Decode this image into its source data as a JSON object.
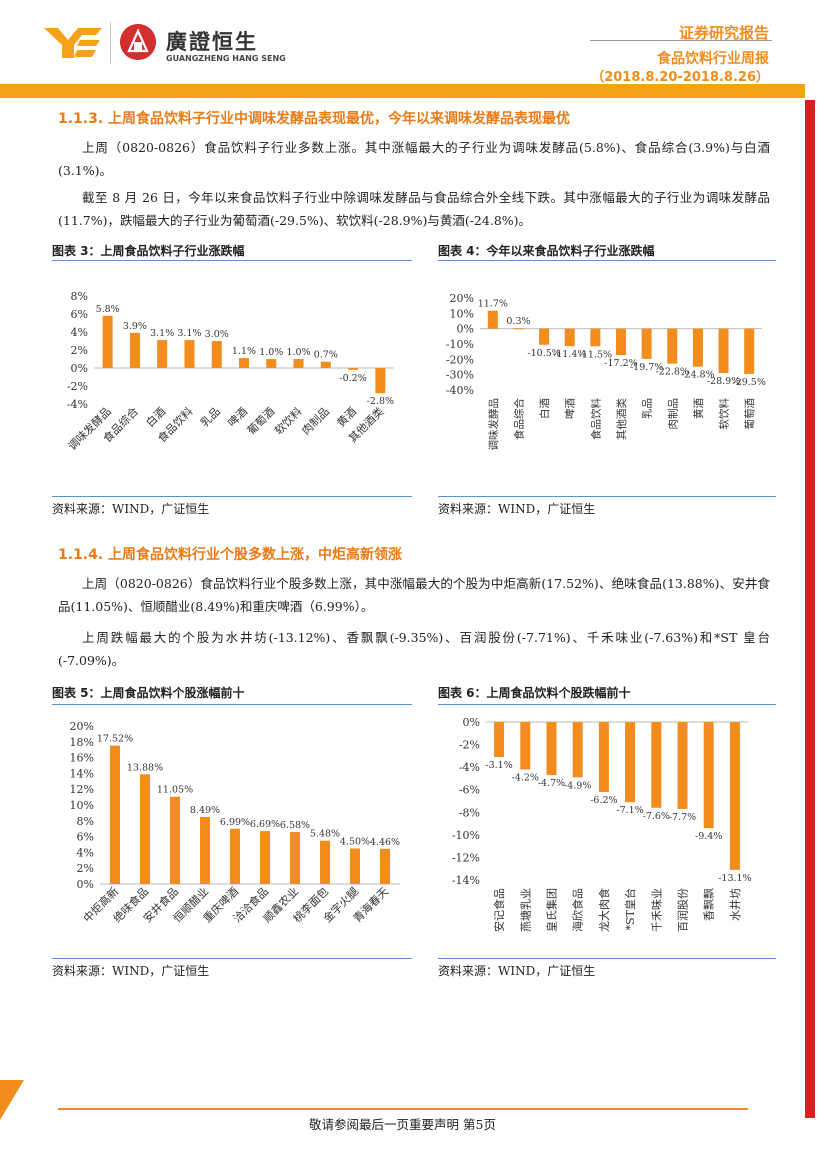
{
  "header": {
    "brand_cn": "廣證恒生",
    "brand_en": "GUANGZHENG HANG SENG",
    "report_type": "证券研究报告",
    "report_title": "食品饮料行业周报",
    "date_range": "（2018.8.20-2018.8.26）"
  },
  "section1": {
    "title": "1.1.3.   上周食品饮料子行业中调味发酵品表现最优，今年以来调味发酵品表现最优",
    "p1": "上周（0820-0826）食品饮料子行业多数上涨。其中涨幅最大的子行业为调味发酵品(5.8%)、食品综合(3.9%)与白酒(3.1%)。",
    "p2": "截至 8 月 26 日，今年以来食品饮料子行业中除调味发酵品与食品综合外全线下跌。其中涨幅最大的子行业为调味发酵品(11.7%)，跌幅最大的子行业为葡萄酒(-29.5%)、软饮料(-28.9%)与黄酒(-24.8%)。"
  },
  "fig3": {
    "title": "图表 3：上周食品饮料子行业涨跌幅",
    "source": "资料来源：WIND，广证恒生"
  },
  "fig4": {
    "title": "图表 4：今年以来食品饮料子行业涨跌幅",
    "source": "资料来源：WIND，广证恒生"
  },
  "section2": {
    "title": "1.1.4.   上周食品饮料行业个股多数上涨，中炬高新领涨",
    "p1": "上周（0820-0826）食品饮料行业个股多数上涨，其中涨幅最大的个股为中炬高新(17.52%)、绝味食品(13.88%)、安井食品(11.05%)、恒顺醋业(8.49%)和重庆啤酒（6.99%）。",
    "p2": "上周跌幅最大的个股为水井坊(-13.12%)、香飘飘(-9.35%)、百润股份(-7.71%)、千禾味业(-7.63%)和*ST 皇台(-7.09%)。"
  },
  "fig5": {
    "title": "图表 5：上周食品饮料个股涨幅前十",
    "source": "资料来源：WIND，广证恒生"
  },
  "fig6": {
    "title": "图表 6：上周食品饮料个股跌幅前十",
    "source": "资料来源：WIND，广证恒生"
  },
  "footer": {
    "text": "敬请参阅最后一页重要声明    第5页"
  },
  "colors": {
    "bar": "#f28c1c",
    "accent": "#ea7a14",
    "rule": "#5b8fd0",
    "side": "#d42020"
  },
  "chart_data": [
    {
      "type": "bar",
      "id": "fig3",
      "categories": [
        "调味发酵品",
        "食品综合",
        "白酒",
        "食品饮料",
        "乳品",
        "啤酒",
        "葡萄酒",
        "软饮料",
        "肉制品",
        "黄酒",
        "其他酒类"
      ],
      "values": [
        5.8,
        3.9,
        3.1,
        3.1,
        3.0,
        1.1,
        1.0,
        1.0,
        0.7,
        -0.2,
        -2.8
      ],
      "labels": [
        "5.8%",
        "3.9%",
        "3.1%",
        "3.1%",
        "3.0%",
        "1.1%",
        "1.0%",
        "1.0%",
        "0.7%",
        "-0.2%",
        "-2.8%"
      ],
      "yticks": [
        "8%",
        "6%",
        "4%",
        "2%",
        "0%",
        "-2%",
        "-4%"
      ],
      "ylim": [
        -4,
        8
      ]
    },
    {
      "type": "bar",
      "id": "fig4",
      "categories": [
        "调味发酵品",
        "食品综合",
        "白酒",
        "啤酒",
        "食品饮料",
        "其他酒类",
        "乳品",
        "肉制品",
        "黄酒",
        "软饮料",
        "葡萄酒"
      ],
      "values": [
        11.7,
        0.3,
        -10.5,
        -11.4,
        -11.5,
        -17.2,
        -19.7,
        -22.8,
        -24.8,
        -28.9,
        -29.5
      ],
      "labels": [
        "11.7%",
        "0.3%",
        "-10.5%",
        "-11.4%",
        "-11.5%",
        "-17.2%",
        "-19.7%",
        "-22.8%",
        "-24.8%",
        "-28.9%",
        "-29.5%"
      ],
      "yticks": [
        "20%",
        "10%",
        "0%",
        "-10%",
        "-20%",
        "-30%",
        "-40%"
      ],
      "ylim": [
        -40,
        20
      ]
    },
    {
      "type": "bar",
      "id": "fig5",
      "categories": [
        "中炬高新",
        "绝味食品",
        "安井食品",
        "恒顺醋业",
        "重庆啤酒",
        "洽洽食品",
        "顺鑫农业",
        "桃李面包",
        "金字火腿",
        "青海春天"
      ],
      "values": [
        17.52,
        13.88,
        11.05,
        8.49,
        6.99,
        6.69,
        6.58,
        5.48,
        4.5,
        4.46
      ],
      "labels": [
        "17.52%",
        "13.88%",
        "11.05%",
        "8.49%",
        "6.99%",
        "6.69%",
        "6.58%",
        "5.48%",
        "4.50%",
        "4.46%"
      ],
      "yticks": [
        "20%",
        "18%",
        "16%",
        "14%",
        "12%",
        "10%",
        "8%",
        "6%",
        "4%",
        "2%",
        "0%"
      ],
      "ylim": [
        0,
        20
      ]
    },
    {
      "type": "bar",
      "id": "fig6",
      "categories": [
        "安记食品",
        "燕塘乳业",
        "皇氏集团",
        "海欣食品",
        "龙大肉食",
        "*ST皇台",
        "千禾味业",
        "百润股份",
        "香飘飘",
        "水井坊"
      ],
      "values": [
        -3.1,
        -4.2,
        -4.7,
        -4.9,
        -6.2,
        -7.1,
        -7.6,
        -7.7,
        -9.4,
        -13.1
      ],
      "labels": [
        "-3.1%",
        "-4.2%",
        "-4.7%",
        "-4.9%",
        "-6.2%",
        "-7.1%",
        "-7.6%",
        "-7.7%",
        "-9.4%",
        "-13.1%"
      ],
      "yticks": [
        "0%",
        "-2%",
        "-4%",
        "-6%",
        "-8%",
        "-10%",
        "-12%",
        "-14%"
      ],
      "ylim": [
        -14,
        0
      ]
    }
  ]
}
